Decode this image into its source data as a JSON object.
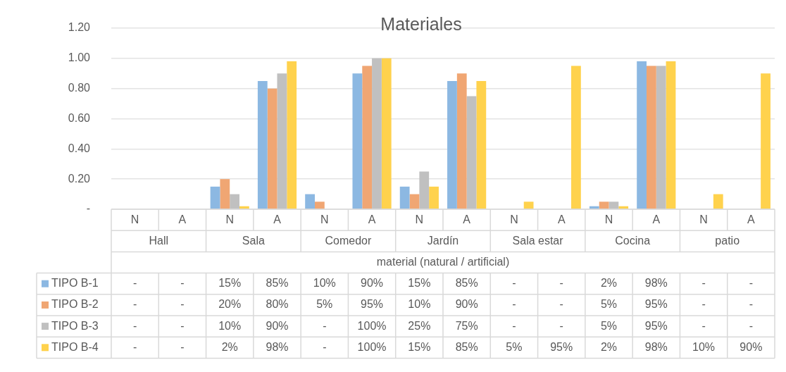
{
  "chart_data": {
    "type": "bar",
    "title": "Materiales",
    "xlabel": "material (natural / artificial)",
    "categories": [
      "N",
      "A",
      "N",
      "A",
      "N",
      "A",
      "N",
      "A",
      "N",
      "A",
      "N",
      "A",
      "N",
      "A"
    ],
    "annotations": [
      "Hall",
      "Sala",
      "Comedor",
      "Jardín",
      "Sala estar",
      "Cocina",
      "patio"
    ],
    "series": [
      {
        "name": "TIPO B-1",
        "color": "#8cb8e2",
        "values": [
          null,
          null,
          0.15,
          0.85,
          0.1,
          0.9,
          0.15,
          0.85,
          null,
          null,
          0.02,
          0.98,
          null,
          null
        ],
        "value_labels": [
          "-",
          "-",
          "15%",
          "85%",
          "10%",
          "90%",
          "15%",
          "85%",
          "-",
          "-",
          "2%",
          "98%",
          "-",
          "-"
        ]
      },
      {
        "name": "TIPO B-2",
        "color": "#f0a673",
        "values": [
          null,
          null,
          0.2,
          0.8,
          0.05,
          0.95,
          0.1,
          0.9,
          null,
          null,
          0.05,
          0.95,
          null,
          null
        ],
        "value_labels": [
          "-",
          "-",
          "20%",
          "80%",
          "5%",
          "95%",
          "10%",
          "90%",
          "-",
          "-",
          "5%",
          "95%",
          "-",
          "-"
        ]
      },
      {
        "name": "TIPO B-3",
        "color": "#c0c0c0",
        "values": [
          null,
          null,
          0.1,
          0.9,
          null,
          1.0,
          0.25,
          0.75,
          null,
          null,
          0.05,
          0.95,
          null,
          null
        ],
        "value_labels": [
          "-",
          "-",
          "10%",
          "90%",
          "-",
          "100%",
          "25%",
          "75%",
          "-",
          "-",
          "5%",
          "95%",
          "-",
          "-"
        ]
      },
      {
        "name": "TIPO B-4",
        "color": "#ffd24d",
        "values": [
          null,
          null,
          0.02,
          0.98,
          null,
          1.0,
          0.15,
          0.85,
          0.05,
          0.95,
          0.02,
          0.98,
          0.1,
          0.9
        ],
        "value_labels": [
          "-",
          "-",
          "2%",
          "98%",
          "-",
          "100%",
          "15%",
          "85%",
          "5%",
          "95%",
          "2%",
          "98%",
          "10%",
          "90%"
        ]
      }
    ],
    "ylim": [
      0,
      1.2
    ],
    "yticks": [
      {
        "value": 0,
        "label": "-"
      },
      {
        "value": 0.2,
        "label": "0.20"
      },
      {
        "value": 0.4,
        "label": "0.40"
      },
      {
        "value": 0.6,
        "label": "0.60"
      },
      {
        "value": 0.8,
        "label": "0.80"
      },
      {
        "value": 1.0,
        "label": "1.00"
      },
      {
        "value": 1.2,
        "label": "1.20"
      }
    ],
    "grid": "y",
    "legend": "bottom"
  }
}
